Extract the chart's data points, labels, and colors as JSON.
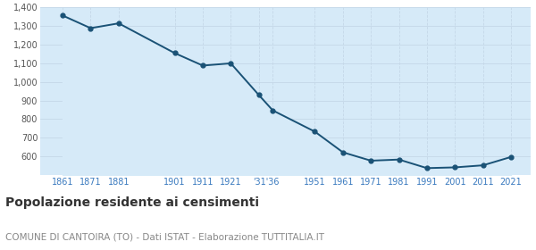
{
  "years": [
    1861,
    1871,
    1881,
    1901,
    1911,
    1921,
    1931,
    1936,
    1951,
    1961,
    1971,
    1981,
    1991,
    2001,
    2011,
    2021
  ],
  "population": [
    1357,
    1289,
    1315,
    1155,
    1088,
    1100,
    930,
    847,
    733,
    622,
    577,
    583,
    537,
    541,
    552,
    597
  ],
  "ylim": [
    500,
    1400
  ],
  "yticks": [
    600,
    700,
    800,
    900,
    1000,
    1100,
    1200,
    1300,
    1400
  ],
  "xlim_left": 1853,
  "xlim_right": 2028,
  "line_color": "#1a5276",
  "fill_color": "#d6eaf8",
  "marker_color": "#1a5276",
  "background_color": "#ffffff",
  "grid_color": "#c5d8e8",
  "tick_label_color": "#3a7abf",
  "ytick_label_color": "#555555",
  "title": "Popolazione residente ai censimenti",
  "subtitle": "COMUNE DI CANTOIRA (TO) - Dati ISTAT - Elaborazione TUTTITALIA.IT",
  "title_fontsize": 10,
  "subtitle_fontsize": 7.5,
  "special_tick_positions": [
    1861,
    1871,
    1881,
    1901,
    1911,
    1921,
    1933.5,
    1951,
    1961,
    1971,
    1981,
    1991,
    2001,
    2011,
    2021
  ],
  "special_tick_labels": [
    "1861",
    "1871",
    "1881",
    "1901",
    "1911",
    "1921",
    "'31'36",
    "1951",
    "1961",
    "1971",
    "1981",
    "1991",
    "2001",
    "2011",
    "2021"
  ]
}
